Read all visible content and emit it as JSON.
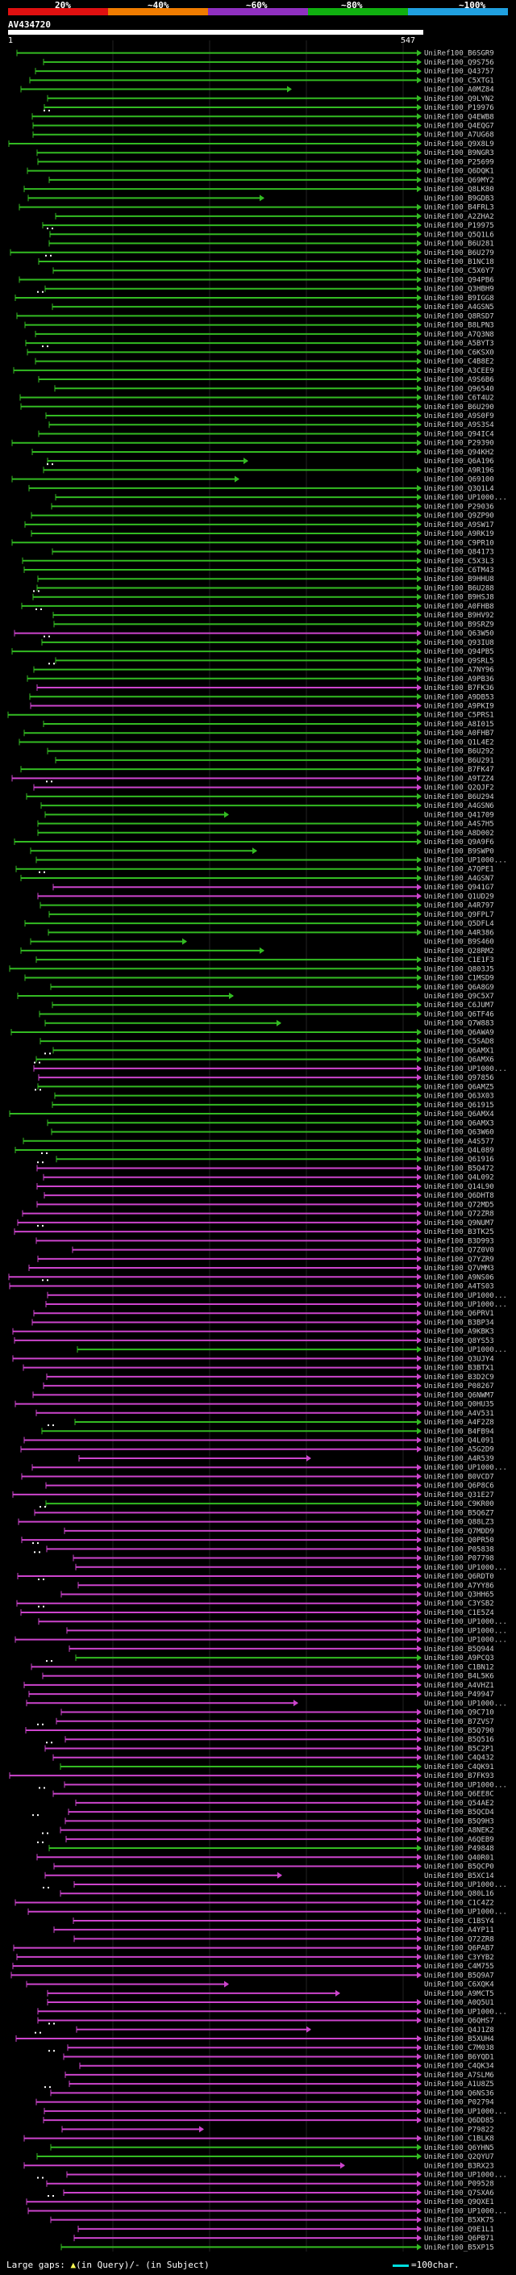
{
  "header": {
    "ticks": [
      "20%",
      "~40%",
      "~60%",
      "~80%",
      "~100%"
    ],
    "bands": [
      "#e01010",
      "#f07c00",
      "#9030c0",
      "#10b010",
      "#20a0e0"
    ],
    "accession": "AV434720",
    "query_start": "1",
    "query_end": "547"
  },
  "hits": [
    {
      "label": "UniRef100_B6SGR9",
      "color": "#33bb22"
    },
    {
      "label": "UniRef100_Q9S756",
      "color": "#33bb22"
    },
    {
      "label": "UniRef100_Q43757",
      "color": "#33bb22"
    },
    {
      "label": "UniRef100_C5XTG1",
      "color": "#33bb22"
    },
    {
      "label": "UniRef100_A0MZ84",
      "color": "#33bb22"
    },
    {
      "label": "UniRef100_Q9LYN2",
      "color": "#33bb22"
    },
    {
      "label": "UniRef100_P19976",
      "color": "#33bb22"
    },
    {
      "label": "UniRef100_Q4EWB8",
      "color": "#33bb22"
    },
    {
      "label": "UniRef100_Q4EQG7",
      "color": "#33bb22"
    },
    {
      "label": "UniRef100_A7UG68",
      "color": "#33bb22"
    },
    {
      "label": "UniRef100_Q9X8L9",
      "color": "#33bb22"
    },
    {
      "label": "UniRef100_B9NGR3",
      "color": "#33bb22"
    },
    {
      "label": "UniRef100_P25699",
      "color": "#33bb22"
    },
    {
      "label": "UniRef100_Q6DQK1",
      "color": "#33bb22"
    },
    {
      "label": "UniRef100_Q69MY2",
      "color": "#33bb22"
    },
    {
      "label": "UniRef100_Q8LK80",
      "color": "#33bb22"
    },
    {
      "label": "UniRef100_B9GDB3",
      "color": "#33bb22"
    },
    {
      "label": "UniRef100_B4FRL3",
      "color": "#33bb22"
    },
    {
      "label": "UniRef100_A2ZHA2",
      "color": "#33bb22"
    },
    {
      "label": "UniRef100_P19975",
      "color": "#33bb22"
    },
    {
      "label": "UniRef100_Q5Q1L6",
      "color": "#33bb22"
    },
    {
      "label": "UniRef100_B6U281",
      "color": "#33bb22"
    },
    {
      "label": "UniRef100_B6U279",
      "color": "#33bb22"
    },
    {
      "label": "UniRef100_B1NC18",
      "color": "#33bb22"
    },
    {
      "label": "UniRef100_C5X6Y7",
      "color": "#33bb22"
    },
    {
      "label": "UniRef100_Q94PB6",
      "color": "#33bb22"
    },
    {
      "label": "UniRef100_Q3HBH9",
      "color": "#33bb22"
    },
    {
      "label": "UniRef100_B9IGG8",
      "color": "#33bb22"
    },
    {
      "label": "UniRef100_A4GSN5",
      "color": "#33bb22"
    },
    {
      "label": "UniRef100_Q8RSD7",
      "color": "#33bb22"
    },
    {
      "label": "UniRef100_B8LPN3",
      "color": "#33bb22"
    },
    {
      "label": "UniRef100_A7Q3N8",
      "color": "#33bb22"
    },
    {
      "label": "UniRef100_A5BYT3",
      "color": "#33bb22"
    },
    {
      "label": "UniRef100_C6KSX0",
      "color": "#33bb22"
    },
    {
      "label": "UniRef100_C4B8E2",
      "color": "#33bb22"
    },
    {
      "label": "UniRef100_A3CEE9",
      "color": "#33bb22"
    },
    {
      "label": "UniRef100_A9S6B6",
      "color": "#33bb22"
    },
    {
      "label": "UniRef100_Q96540",
      "color": "#33bb22"
    },
    {
      "label": "UniRef100_C6T4U2",
      "color": "#33bb22"
    },
    {
      "label": "UniRef100_B6U290",
      "color": "#33bb22"
    },
    {
      "label": "UniRef100_A9S0F9",
      "color": "#33bb22"
    },
    {
      "label": "UniRef100_A9S3S4",
      "color": "#33bb22"
    },
    {
      "label": "UniRef100_Q94IC4",
      "color": "#33bb22"
    },
    {
      "label": "UniRef100_P29390",
      "color": "#33bb22"
    },
    {
      "label": "UniRef100_Q94KH2",
      "color": "#33bb22"
    },
    {
      "label": "UniRef100_Q6A196",
      "color": "#33bb22"
    },
    {
      "label": "UniRef100_A9R196",
      "color": "#33bb22"
    },
    {
      "label": "UniRef100_Q69100",
      "color": "#33bb22"
    },
    {
      "label": "UniRef100_Q3Q1L4",
      "color": "#33bb22"
    },
    {
      "label": "UniRef100_UP1000...",
      "color": "#33bb22"
    },
    {
      "label": "UniRef100_P29036",
      "color": "#33bb22"
    },
    {
      "label": "UniRef100_Q9ZP90",
      "color": "#33bb22"
    },
    {
      "label": "UniRef100_A9SW17",
      "color": "#33bb22"
    },
    {
      "label": "UniRef100_A9RK19",
      "color": "#33bb22"
    },
    {
      "label": "UniRef100_C9PR10",
      "color": "#33bb22"
    },
    {
      "label": "UniRef100_Q84173",
      "color": "#33bb22"
    },
    {
      "label": "UniRef100_C5X3L3",
      "color": "#33bb22"
    },
    {
      "label": "UniRef100_C6TM43",
      "color": "#33bb22"
    },
    {
      "label": "UniRef100_B9HHU8",
      "color": "#33bb22"
    },
    {
      "label": "UniRef100_B6U288",
      "color": "#33bb22"
    },
    {
      "label": "UniRef100_B9HSJ8",
      "color": "#33bb22"
    },
    {
      "label": "UniRef100_A0FHB8",
      "color": "#33bb22"
    },
    {
      "label": "UniRef100_B9HV92",
      "color": "#33bb22"
    },
    {
      "label": "UniRef100_B9SRZ9",
      "color": "#33bb22"
    },
    {
      "label": "UniRef100_Q63W50",
      "color": "#cc44cc"
    },
    {
      "label": "UniRef100_Q93IU8",
      "color": "#33bb22"
    },
    {
      "label": "UniRef100_Q94PB5",
      "color": "#33bb22"
    },
    {
      "label": "UniRef100_Q9SRL5",
      "color": "#33bb22"
    },
    {
      "label": "UniRef100_A7NY96",
      "color": "#33bb22"
    },
    {
      "label": "UniRef100_A9PB36",
      "color": "#33bb22"
    },
    {
      "label": "UniRef100_B7FK36",
      "color": "#cc44cc"
    },
    {
      "label": "UniRef100_A9DB53",
      "color": "#33bb22"
    },
    {
      "label": "UniRef100_A9PKI9",
      "color": "#cc44cc"
    },
    {
      "label": "UniRef100_C5PRS1",
      "color": "#33bb22"
    },
    {
      "label": "UniRef100_A8I015",
      "color": "#33bb22"
    },
    {
      "label": "UniRef100_A0FHB7",
      "color": "#33bb22"
    },
    {
      "label": "UniRef100_Q1L4E2",
      "color": "#33bb22"
    },
    {
      "label": "UniRef100_B6U292",
      "color": "#33bb22"
    },
    {
      "label": "UniRef100_B6U291",
      "color": "#33bb22"
    },
    {
      "label": "UniRef100_B7FK47",
      "color": "#33bb22"
    },
    {
      "label": "UniRef100_A9TZZ4",
      "color": "#cc44cc"
    },
    {
      "label": "UniRef100_Q2QJF2",
      "color": "#cc44cc"
    },
    {
      "label": "UniRef100_B6U294",
      "color": "#33bb22"
    },
    {
      "label": "UniRef100_A4GSN6",
      "color": "#33bb22"
    },
    {
      "label": "UniRef100_Q41709",
      "color": "#33bb22"
    },
    {
      "label": "UniRef100_A4S7H5",
      "color": "#33bb22"
    },
    {
      "label": "UniRef100_A8D002",
      "color": "#33bb22"
    },
    {
      "label": "UniRef100_Q9A9F6",
      "color": "#33bb22"
    },
    {
      "label": "UniRef100_B9SWP0",
      "color": "#33bb22"
    },
    {
      "label": "UniRef100_UP1000...",
      "color": "#33bb22"
    },
    {
      "label": "UniRef100_A7QPE1",
      "color": "#33bb22"
    },
    {
      "label": "UniRef100_A4GSN7",
      "color": "#33bb22"
    },
    {
      "label": "UniRef100_Q941G7",
      "color": "#cc44cc"
    },
    {
      "label": "UniRef100_Q1UD29",
      "color": "#cc44cc"
    },
    {
      "label": "UniRef100_A4R797",
      "color": "#33bb22"
    },
    {
      "label": "UniRef100_Q9FPL7",
      "color": "#33bb22"
    },
    {
      "label": "UniRef100_Q5DFL4",
      "color": "#33bb22"
    },
    {
      "label": "UniRef100_A4R386",
      "color": "#33bb22"
    },
    {
      "label": "UniRef100_B9S460",
      "color": "#33bb22"
    },
    {
      "label": "UniRef100_Q28RM2",
      "color": "#33bb22"
    },
    {
      "label": "UniRef100_C1E1F3",
      "color": "#33bb22"
    },
    {
      "label": "UniRef100_Q803J5",
      "color": "#33bb22"
    },
    {
      "label": "UniRef100_C1MSD9",
      "color": "#33bb22"
    },
    {
      "label": "UniRef100_Q6A8G9",
      "color": "#33bb22"
    },
    {
      "label": "UniRef100_Q9C5X7",
      "color": "#33bb22"
    },
    {
      "label": "UniRef100_C6JUM7",
      "color": "#33bb22"
    },
    {
      "label": "UniRef100_Q6TF46",
      "color": "#33bb22"
    },
    {
      "label": "UniRef100_Q7W883",
      "color": "#33bb22"
    },
    {
      "label": "UniRef100_Q6AWA9",
      "color": "#33bb22"
    },
    {
      "label": "UniRef100_C5SAD8",
      "color": "#33bb22"
    },
    {
      "label": "UniRef100_Q6AMX1",
      "color": "#33bb22"
    },
    {
      "label": "UniRef100_Q6AMX6",
      "color": "#33bb22"
    },
    {
      "label": "UniRef100_UP1000...",
      "color": "#cc44cc"
    },
    {
      "label": "UniRef100_Q97856",
      "color": "#cc44cc"
    },
    {
      "label": "UniRef100_Q6AMZ5",
      "color": "#33bb22"
    },
    {
      "label": "UniRef100_Q63X03",
      "color": "#33bb22"
    },
    {
      "label": "UniRef100_Q61915",
      "color": "#33bb22"
    },
    {
      "label": "UniRef100_Q6AMX4",
      "color": "#33bb22"
    },
    {
      "label": "UniRef100_Q6AMX3",
      "color": "#33bb22"
    },
    {
      "label": "UniRef100_Q63W60",
      "color": "#33bb22"
    },
    {
      "label": "UniRef100_A4S577",
      "color": "#33bb22"
    },
    {
      "label": "UniRef100_Q4L089",
      "color": "#33bb22"
    },
    {
      "label": "UniRef100_Q61916",
      "color": "#33bb22"
    },
    {
      "label": "UniRef100_B5Q472",
      "color": "#cc44cc"
    },
    {
      "label": "UniRef100_Q4L092",
      "color": "#cc44cc"
    },
    {
      "label": "UniRef100_Q14L90",
      "color": "#cc44cc"
    },
    {
      "label": "UniRef100_Q6DHT8",
      "color": "#cc44cc"
    },
    {
      "label": "UniRef100_Q72MD5",
      "color": "#cc44cc"
    },
    {
      "label": "UniRef100_Q72ZR8",
      "color": "#cc44cc"
    },
    {
      "label": "UniRef100_Q9NUM7",
      "color": "#cc44cc"
    },
    {
      "label": "UniRef100_B3TK25",
      "color": "#cc44cc"
    },
    {
      "label": "UniRef100_B3D993",
      "color": "#cc44cc"
    },
    {
      "label": "UniRef100_Q7Z0V0",
      "color": "#cc44cc"
    },
    {
      "label": "UniRef100_Q7YZR9",
      "color": "#cc44cc"
    },
    {
      "label": "UniRef100_Q7VMM3",
      "color": "#cc44cc"
    },
    {
      "label": "UniRef100_A9NS06",
      "color": "#cc44cc"
    },
    {
      "label": "UniRef100_A4TS03",
      "color": "#cc44cc"
    },
    {
      "label": "UniRef100_UP1000...",
      "color": "#cc44cc"
    },
    {
      "label": "UniRef100_UP1000...",
      "color": "#cc44cc"
    },
    {
      "label": "UniRef100_Q6PRV1",
      "color": "#cc44cc"
    },
    {
      "label": "UniRef100_B3BP34",
      "color": "#cc44cc"
    },
    {
      "label": "UniRef100_A9KBK3",
      "color": "#cc44cc"
    },
    {
      "label": "UniRef100_Q8YS53",
      "color": "#cc44cc"
    },
    {
      "label": "UniRef100_UP1000...",
      "color": "#33bb22"
    },
    {
      "label": "UniRef100_Q3UJY4",
      "color": "#cc44cc"
    },
    {
      "label": "UniRef100_B3BTX1",
      "color": "#cc44cc"
    },
    {
      "label": "UniRef100_B3D2C9",
      "color": "#cc44cc"
    },
    {
      "label": "UniRef100_P08267",
      "color": "#cc44cc"
    },
    {
      "label": "UniRef100_Q6NWM7",
      "color": "#cc44cc"
    },
    {
      "label": "UniRef100_Q0HU35",
      "color": "#cc44cc"
    },
    {
      "label": "UniRef100_A4V531",
      "color": "#cc44cc"
    },
    {
      "label": "UniRef100_A4F2Z8",
      "color": "#33bb22"
    },
    {
      "label": "UniRef100_B4FB94",
      "color": "#33bb22"
    },
    {
      "label": "UniRef100_Q4L091",
      "color": "#cc44cc"
    },
    {
      "label": "UniRef100_A5G2D9",
      "color": "#cc44cc"
    },
    {
      "label": "UniRef100_A4R539",
      "color": "#cc44cc"
    },
    {
      "label": "UniRef100_UP1000...",
      "color": "#cc44cc"
    },
    {
      "label": "UniRef100_B0VCD7",
      "color": "#cc44cc"
    },
    {
      "label": "UniRef100_Q6P8C6",
      "color": "#cc44cc"
    },
    {
      "label": "UniRef100_Q31E27",
      "color": "#cc44cc"
    },
    {
      "label": "UniRef100_C9KR00",
      "color": "#33bb22"
    },
    {
      "label": "UniRef100_B5Q6Z7",
      "color": "#cc44cc"
    },
    {
      "label": "UniRef100_Q88LZ3",
      "color": "#cc44cc"
    },
    {
      "label": "UniRef100_Q7MDD9",
      "color": "#cc44cc"
    },
    {
      "label": "UniRef100_Q0PR50",
      "color": "#cc44cc"
    },
    {
      "label": "UniRef100_P05838",
      "color": "#cc44cc"
    },
    {
      "label": "UniRef100_P07798",
      "color": "#cc44cc"
    },
    {
      "label": "UniRef100_UP1000...",
      "color": "#cc44cc"
    },
    {
      "label": "UniRef100_Q6RDT0",
      "color": "#cc44cc"
    },
    {
      "label": "UniRef100_A7YY86",
      "color": "#cc44cc"
    },
    {
      "label": "UniRef100_Q3HH65",
      "color": "#cc44cc"
    },
    {
      "label": "UniRef100_C3YSB2",
      "color": "#cc44cc"
    },
    {
      "label": "UniRef100_C1E5Z4",
      "color": "#cc44cc"
    },
    {
      "label": "UniRef100_UP1000...",
      "color": "#cc44cc"
    },
    {
      "label": "UniRef100_UP1000...",
      "color": "#cc44cc"
    },
    {
      "label": "UniRef100_UP1000...",
      "color": "#cc44cc"
    },
    {
      "label": "UniRef100_B5Q944",
      "color": "#cc44cc"
    },
    {
      "label": "UniRef100_A9PCQ3",
      "color": "#33bb22"
    },
    {
      "label": "UniRef100_C1BN12",
      "color": "#cc44cc"
    },
    {
      "label": "UniRef100_B4L5K6",
      "color": "#cc44cc"
    },
    {
      "label": "UniRef100_A4VHZ1",
      "color": "#cc44cc"
    },
    {
      "label": "UniRef100_P49947",
      "color": "#cc44cc"
    },
    {
      "label": "UniRef100_UP1000...",
      "color": "#cc44cc"
    },
    {
      "label": "UniRef100_Q9C710",
      "color": "#cc44cc"
    },
    {
      "label": "UniRef100_B7ZVS7",
      "color": "#cc44cc"
    },
    {
      "label": "UniRef100_B5Q790",
      "color": "#cc44cc"
    },
    {
      "label": "UniRef100_B5Q516",
      "color": "#cc44cc"
    },
    {
      "label": "UniRef100_B5C2P1",
      "color": "#cc44cc"
    },
    {
      "label": "UniRef100_C4Q432",
      "color": "#cc44cc"
    },
    {
      "label": "UniRef100_C4QK91",
      "color": "#33bb22"
    },
    {
      "label": "UniRef100_B7FK93",
      "color": "#cc44cc"
    },
    {
      "label": "UniRef100_UP1000...",
      "color": "#cc44cc"
    },
    {
      "label": "UniRef100_Q6EE8C",
      "color": "#cc44cc"
    },
    {
      "label": "UniRef100_Q54AE2",
      "color": "#cc44cc"
    },
    {
      "label": "UniRef100_B5QCD4",
      "color": "#cc44cc"
    },
    {
      "label": "UniRef100_B5Q9H3",
      "color": "#cc44cc"
    },
    {
      "label": "UniRef100_A8NEK2",
      "color": "#cc44cc"
    },
    {
      "label": "UniRef100_A6QEB9",
      "color": "#cc44cc"
    },
    {
      "label": "UniRef100_P49848",
      "color": "#33bb22"
    },
    {
      "label": "UniRef100_Q40R01",
      "color": "#cc44cc"
    },
    {
      "label": "UniRef100_B5QCP0",
      "color": "#cc44cc"
    },
    {
      "label": "UniRef100_B5XC14",
      "color": "#cc44cc"
    },
    {
      "label": "UniRef100_UP1000...",
      "color": "#cc44cc"
    },
    {
      "label": "UniRef100_Q80L16",
      "color": "#cc44cc"
    },
    {
      "label": "UniRef100_C1C4Z2",
      "color": "#cc44cc"
    },
    {
      "label": "UniRef100_UP1000...",
      "color": "#cc44cc"
    },
    {
      "label": "UniRef100_C1BSY4",
      "color": "#cc44cc"
    },
    {
      "label": "UniRef100_A4YP11",
      "color": "#cc44cc"
    },
    {
      "label": "UniRef100_Q72ZR8",
      "color": "#cc44cc"
    },
    {
      "label": "UniRef100_Q6PAB7",
      "color": "#cc44cc"
    },
    {
      "label": "UniRef100_C3YYB2",
      "color": "#cc44cc"
    },
    {
      "label": "UniRef100_C4M755",
      "color": "#cc44cc"
    },
    {
      "label": "UniRef100_B5Q9A7",
      "color": "#cc44cc"
    },
    {
      "label": "UniRef100_C6XQK4",
      "color": "#cc44cc"
    },
    {
      "label": "UniRef100_A9MCT5",
      "color": "#cc44cc"
    },
    {
      "label": "UniRef100_A0Q5U1",
      "color": "#cc44cc"
    },
    {
      "label": "UniRef100_UP1000...",
      "color": "#cc44cc"
    },
    {
      "label": "UniRef100_Q6QHS7",
      "color": "#cc44cc"
    },
    {
      "label": "UniRef100_Q4J1Z8",
      "color": "#cc44cc"
    },
    {
      "label": "UniRef100_B5XUH4",
      "color": "#cc44cc"
    },
    {
      "label": "UniRef100_C7M038",
      "color": "#cc44cc"
    },
    {
      "label": "UniRef100_B6YQD1",
      "color": "#cc44cc"
    },
    {
      "label": "UniRef100_C4QK34",
      "color": "#cc44cc"
    },
    {
      "label": "UniRef100_A7SLM6",
      "color": "#cc44cc"
    },
    {
      "label": "UniRef100_A1U8Z5",
      "color": "#cc44cc"
    },
    {
      "label": "UniRef100_Q6NS36",
      "color": "#cc44cc"
    },
    {
      "label": "UniRef100_P02794",
      "color": "#cc44cc"
    },
    {
      "label": "UniRef100_UP1000...",
      "color": "#cc44cc"
    },
    {
      "label": "UniRef100_Q6DD85",
      "color": "#cc44cc"
    },
    {
      "label": "UniRef100_P79822",
      "color": "#cc44cc"
    },
    {
      "label": "UniRef100_C1BLK8",
      "color": "#cc44cc"
    },
    {
      "label": "UniRef100_Q6YHN5",
      "color": "#33bb22"
    },
    {
      "label": "UniRef100_Q2QYU7",
      "color": "#33bb22"
    },
    {
      "label": "UniRef100_B3RX23",
      "color": "#cc44cc"
    },
    {
      "label": "UniRef100_UP1000...",
      "color": "#cc44cc"
    },
    {
      "label": "UniRef100_P09528",
      "color": "#cc44cc"
    },
    {
      "label": "UniRef100_Q7SXA6",
      "color": "#cc44cc"
    },
    {
      "label": "UniRef100_Q9QXE1",
      "color": "#cc44cc"
    },
    {
      "label": "UniRef100_UP1000...",
      "color": "#cc44cc"
    },
    {
      "label": "UniRef100_B5XK75",
      "color": "#cc44cc"
    },
    {
      "label": "UniRef100_Q9E1L1",
      "color": "#cc44cc"
    },
    {
      "label": "UniRef100_Q6PB71",
      "color": "#cc44cc"
    },
    {
      "label": "UniRef100_B5XP15",
      "color": "#33bb22"
    }
  ],
  "footer": {
    "gaps_label": "Large gaps: ",
    "gaps_query_marker": "▲",
    "gaps_query": "(in Query)/",
    "gaps_subject_marker": "-",
    "gaps_subject": " (in Subject)",
    "scale_label": "=100char."
  }
}
